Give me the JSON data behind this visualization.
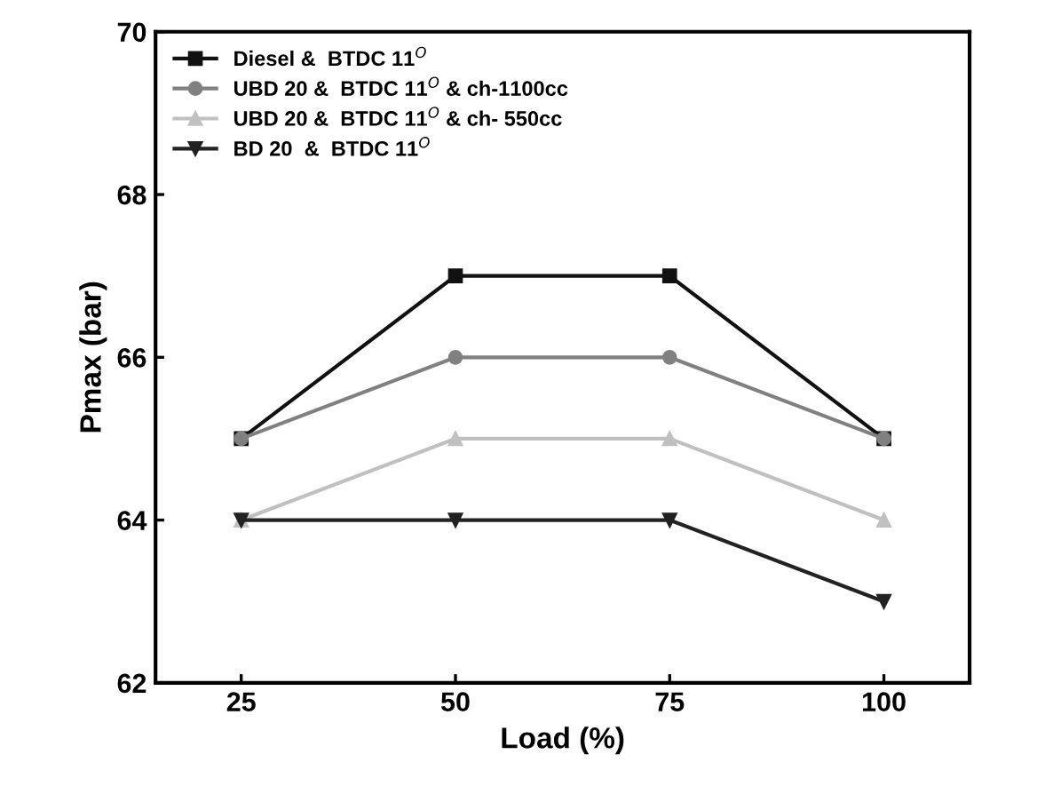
{
  "chart_data": {
    "type": "line",
    "xlabel": "Load (%)",
    "ylabel": "Pmax (bar)",
    "x": [
      25,
      50,
      75,
      100
    ],
    "xlim": [
      15,
      110
    ],
    "xticks": [
      25,
      50,
      75,
      100
    ],
    "ylim": [
      62,
      70
    ],
    "yticks": [
      62,
      64,
      66,
      68,
      70
    ],
    "grid": false,
    "legend": "top left",
    "line_style": "solid",
    "series": [
      {
        "name": "Diesel &  BTDC 11$^{O}$",
        "color": "#111111",
        "marker": "square",
        "values": [
          65,
          67,
          67,
          65
        ]
      },
      {
        "name": "UBD 20 &  BTDC 11$^{O}$ & ch-1100cc",
        "color": "#808080",
        "marker": "circle",
        "values": [
          65,
          66,
          66,
          65
        ]
      },
      {
        "name": "UBD 20 &  BTDC 11$^{O}$ & ch- 550cc",
        "color": "#c0c0c0",
        "marker": "triangle",
        "values": [
          64,
          65,
          65,
          64
        ]
      },
      {
        "name": "BD 20  &  BTDC 11$^{O}$",
        "color": "#222222",
        "marker": "triangle_down",
        "values": [
          64,
          64,
          64,
          63
        ]
      }
    ]
  }
}
